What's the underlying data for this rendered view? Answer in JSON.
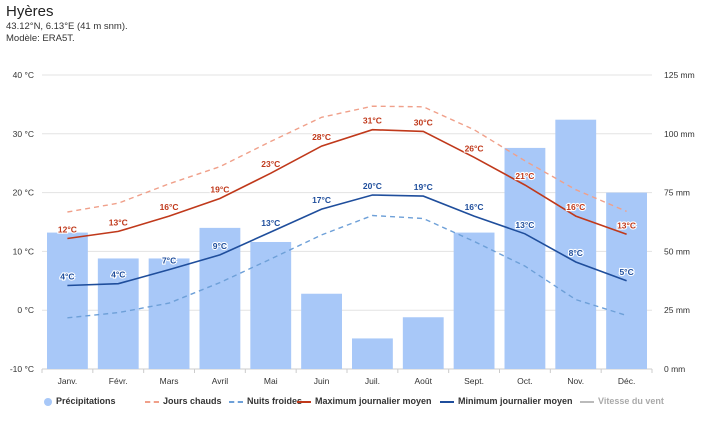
{
  "header": {
    "title": "Hyères",
    "coords": "43.12°N, 6.13°E (41 m snm).",
    "model": "Modèle: ERA5T."
  },
  "chart_data": {
    "type": "bar+line",
    "categories": [
      "Janv.",
      "Févr.",
      "Mars",
      "Avril",
      "Mai",
      "Juin",
      "Juil.",
      "Août",
      "Sept.",
      "Oct.",
      "Nov.",
      "Déc."
    ],
    "y_left": {
      "unit": "°C",
      "ylim": [
        -10,
        40
      ],
      "ticks": [
        "-10 °C",
        "0 °C",
        "10 °C",
        "20 °C",
        "30 °C",
        "40 °C"
      ]
    },
    "y_right": {
      "unit": "mm",
      "ylim": [
        0,
        125
      ],
      "ticks": [
        "0 mm",
        "25 mm",
        "50 mm",
        "75 mm",
        "100 mm",
        "125 mm"
      ]
    },
    "grid": true,
    "legend_position": "bottom",
    "series": [
      {
        "name": "Précipitations",
        "kind": "bar",
        "axis": "right",
        "color": "#a8c8f8",
        "values": [
          58,
          47,
          47,
          60,
          54,
          32,
          13,
          22,
          58,
          94,
          106,
          75
        ]
      },
      {
        "name": "Jours chauds",
        "kind": "dashed-line",
        "axis": "left",
        "color": "#f0a08a",
        "values": [
          16.7,
          18.2,
          21.5,
          24.4,
          28.7,
          32.8,
          34.7,
          34.6,
          30.7,
          25.4,
          20.5,
          16.8
        ]
      },
      {
        "name": "Nuits froides",
        "kind": "dashed-line",
        "axis": "left",
        "color": "#6ea0d8",
        "values": [
          -1.3,
          -0.4,
          1.2,
          4.7,
          8.7,
          12.8,
          16.1,
          15.6,
          11.7,
          7.5,
          1.8,
          -0.9
        ]
      },
      {
        "name": "Maximum journalier moyen",
        "kind": "line",
        "axis": "left",
        "color": "#c0391b",
        "values": [
          12.2,
          13.4,
          16.0,
          19.0,
          23.3,
          27.9,
          30.7,
          30.4,
          26.0,
          21.3,
          16.0,
          12.9
        ],
        "labels": [
          "12°C",
          "13°C",
          "16°C",
          "19°C",
          "23°C",
          "28°C",
          "31°C",
          "30°C",
          "26°C",
          "21°C",
          "16°C",
          "13°C"
        ]
      },
      {
        "name": "Minimum journalier moyen",
        "kind": "line",
        "axis": "left",
        "color": "#1f4e9c",
        "values": [
          4.2,
          4.5,
          6.9,
          9.4,
          13.3,
          17.2,
          19.6,
          19.4,
          16.0,
          13.0,
          8.2,
          5.0
        ],
        "labels": [
          "4°C",
          "4°C",
          "7°C",
          "9°C",
          "13°C",
          "17°C",
          "20°C",
          "19°C",
          "16°C",
          "13°C",
          "8°C",
          "5°C"
        ]
      },
      {
        "name": "Vitesse du vent",
        "kind": "legend-only",
        "color": "#bbbbbb"
      }
    ]
  }
}
